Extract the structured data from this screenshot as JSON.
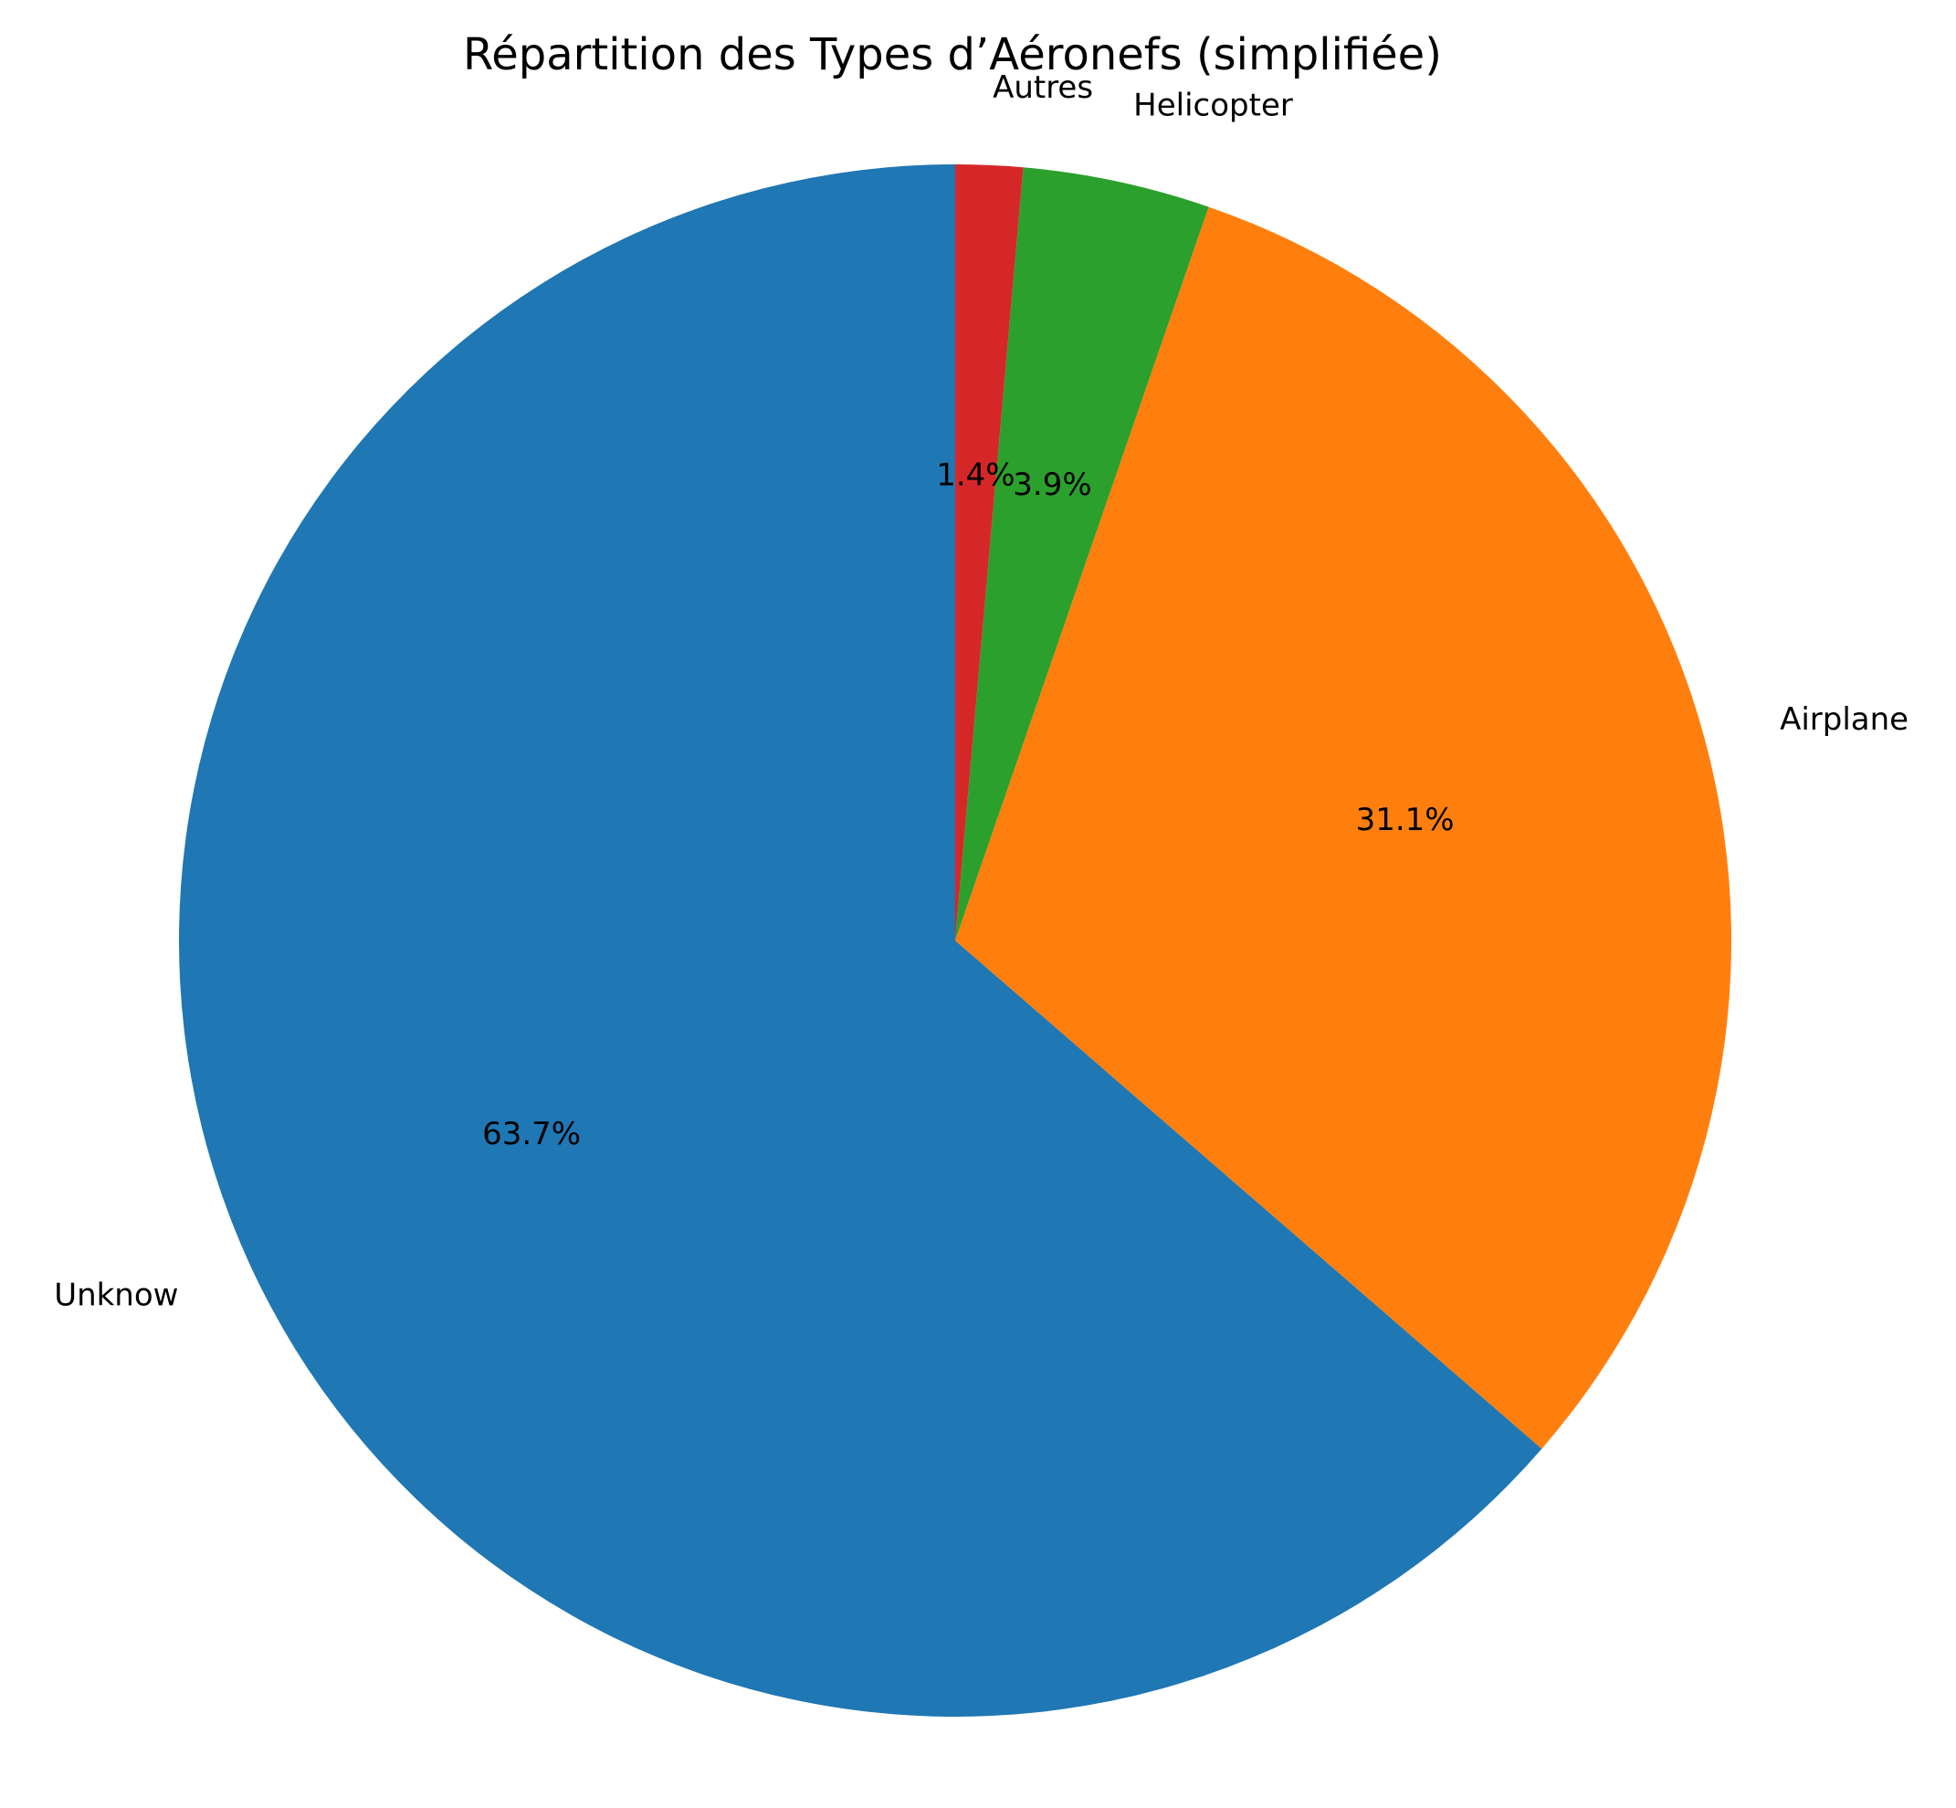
{
  "chart_data": {
    "type": "pie",
    "title": "Répartition des Types d’Aéronefs (simplifiée)",
    "start_angle_deg": 90,
    "direction": "counterclockwise",
    "slices": [
      {
        "label": "Unknow",
        "value": 63.7,
        "pct_label": "63.7%",
        "color": "#1f77b4"
      },
      {
        "label": "Airplane",
        "value": 31.1,
        "pct_label": "31.1%",
        "color": "#ff7f0e"
      },
      {
        "label": "Helicopter",
        "value": 3.9,
        "pct_label": "3.9%",
        "color": "#2ca02c"
      },
      {
        "label": "Autres",
        "value": 1.4,
        "pct_label": "1.4%",
        "color": "#d62728"
      }
    ]
  }
}
